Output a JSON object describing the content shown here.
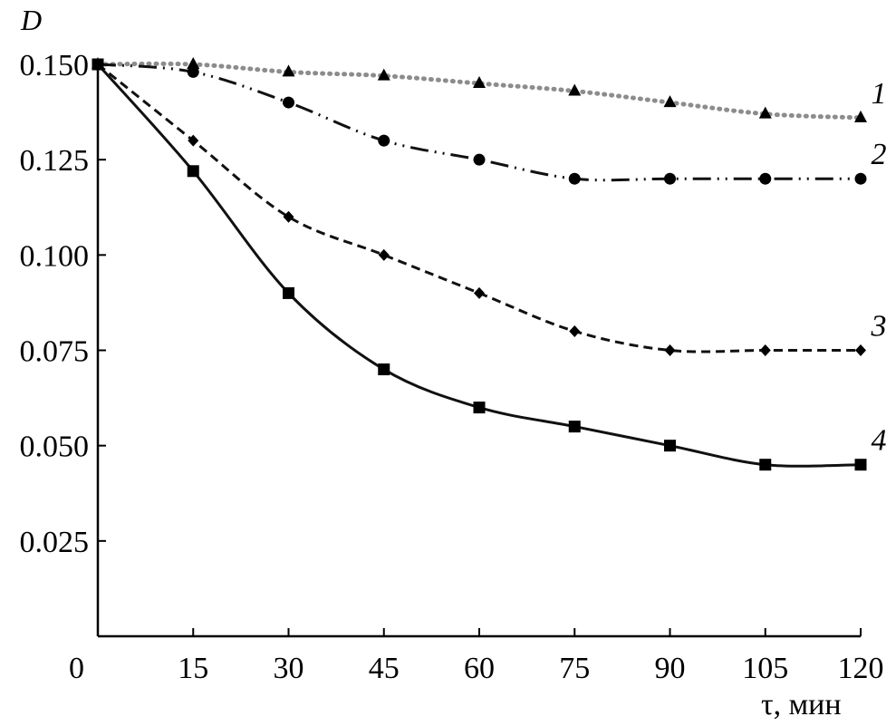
{
  "chart_data": {
    "type": "line",
    "ylabel": "D",
    "xlabel": "τ, мин",
    "origin_label": "0",
    "x_ticks": [
      15,
      30,
      45,
      60,
      75,
      90,
      105,
      120
    ],
    "y_ticks": [
      "0.025",
      "0.050",
      "0.075",
      "0.100",
      "0.125",
      "0.150"
    ],
    "xlim": [
      0,
      120
    ],
    "ylim": [
      0,
      0.15
    ],
    "grid": false,
    "x": [
      0,
      15,
      30,
      45,
      60,
      75,
      90,
      105,
      120
    ],
    "series": [
      {
        "name": "1",
        "marker": "triangle",
        "line_style": "dotted",
        "color": "#8c8c8c",
        "values": [
          0.15,
          0.15,
          0.148,
          0.147,
          0.145,
          0.143,
          0.14,
          0.137,
          0.136
        ]
      },
      {
        "name": "2",
        "marker": "circle",
        "line_style": "dash-dot-dot",
        "color": "#111111",
        "values": [
          0.15,
          0.148,
          0.14,
          0.13,
          0.125,
          0.12,
          0.12,
          0.12,
          0.12
        ]
      },
      {
        "name": "3",
        "marker": "diamond",
        "line_style": "dashed",
        "color": "#111111",
        "values": [
          0.15,
          0.13,
          0.11,
          0.1,
          0.09,
          0.08,
          0.075,
          0.075,
          0.075
        ]
      },
      {
        "name": "4",
        "marker": "square",
        "line_style": "solid",
        "color": "#111111",
        "values": [
          0.15,
          0.122,
          0.09,
          0.07,
          0.06,
          0.055,
          0.05,
          0.045,
          0.045
        ]
      }
    ]
  }
}
